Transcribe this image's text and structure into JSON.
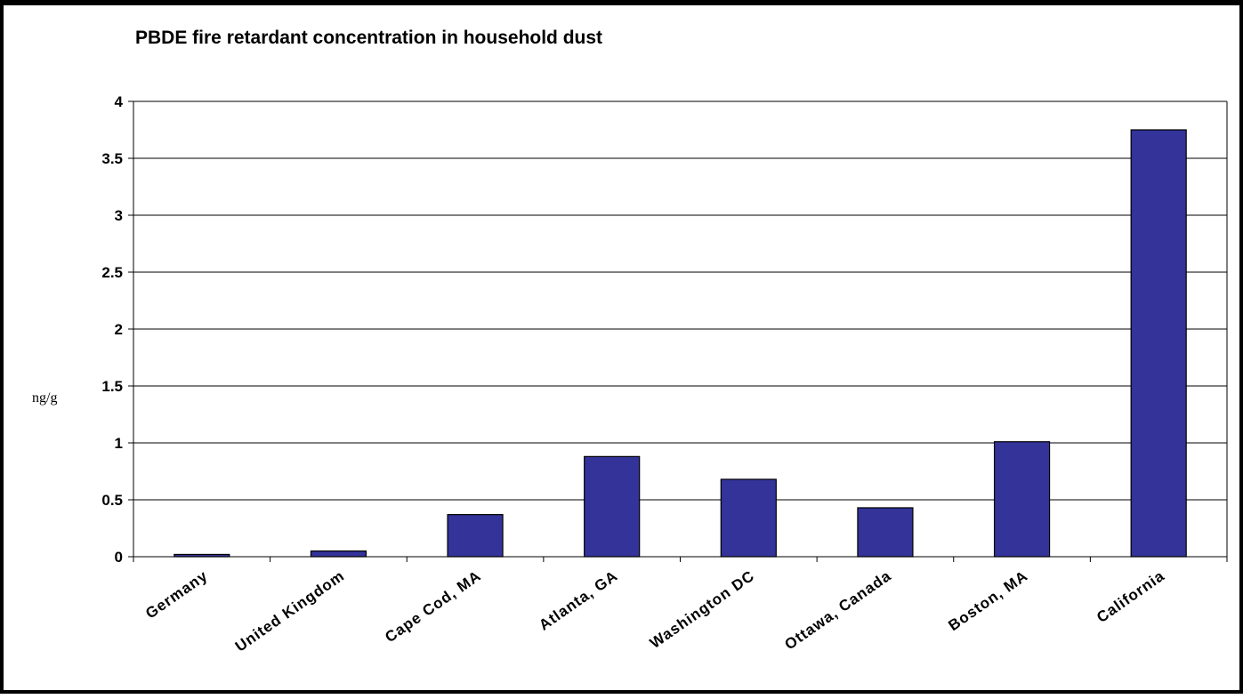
{
  "chart_data": {
    "type": "bar",
    "title": "PBDE fire retardant concentration in household dust",
    "xlabel": "",
    "ylabel": "ng/g",
    "categories": [
      "Germany",
      "United Kingdom",
      "Cape Cod, MA",
      "Atlanta, GA",
      "Washington DC",
      "Ottawa, Canada",
      "Boston, MA",
      "California"
    ],
    "values": [
      0.02,
      0.05,
      0.37,
      0.88,
      0.68,
      0.43,
      1.01,
      3.75
    ],
    "ylim": [
      0,
      4
    ],
    "yticks": [
      "0",
      "0.5",
      "1",
      "1.5",
      "2",
      "2.5",
      "3",
      "3.5",
      "4"
    ],
    "grid": true,
    "legend": "none",
    "colors": {
      "bar": "#333399",
      "background": "#ffffff",
      "frame": "#000000"
    }
  }
}
